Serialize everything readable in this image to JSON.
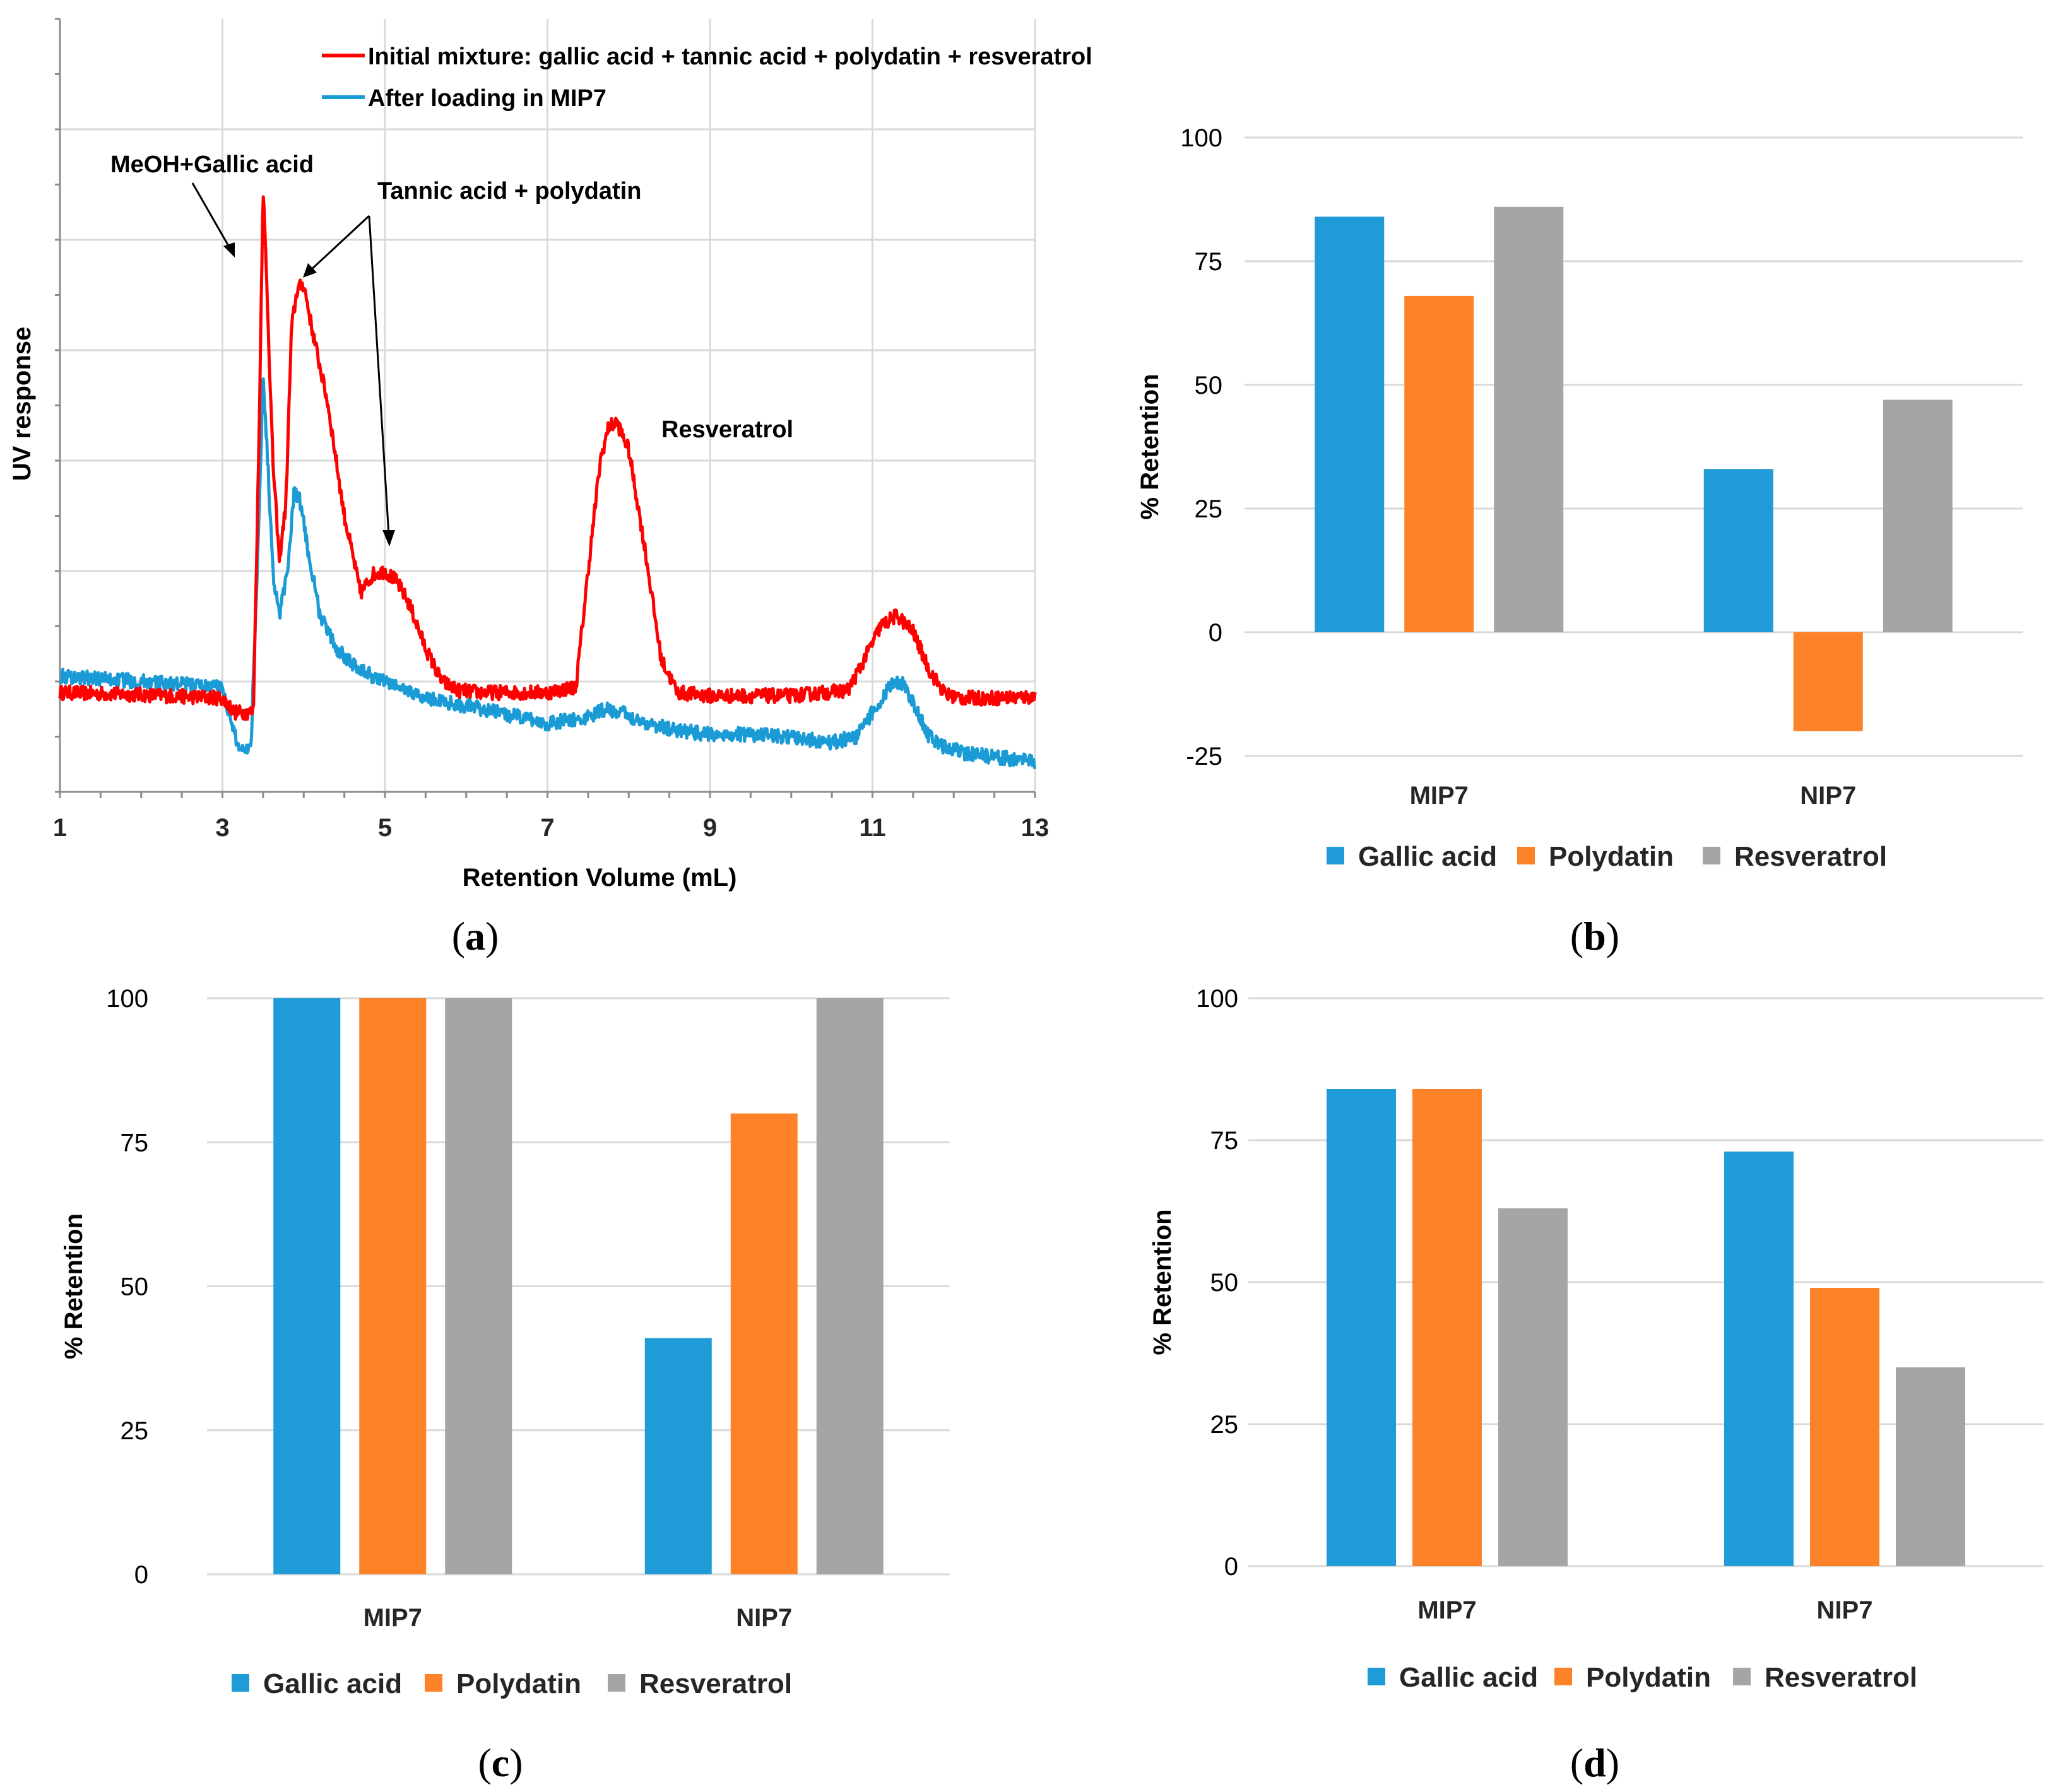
{
  "colors": {
    "gallic": "#1f9bd7",
    "polydatin": "#fd8228",
    "resveratrol": "#a5a5a5",
    "initial": "#ff0000",
    "after": "#1b9bd6"
  },
  "panel_a": {
    "caption": "a",
    "xlabel": "Retention Volume (mL)",
    "ylabel": "UV response",
    "legend": [
      "Initial mixture: gallic acid + tannic acid + polydatin + resveratrol",
      "After loading in MIP7"
    ],
    "annotations": {
      "meoh": "MeOH+Gallic acid",
      "tannic": "Tannic acid + polydatin",
      "resveratrol": "Resveratrol"
    }
  },
  "chart_data": [
    {
      "type": "line",
      "panel": "a",
      "title": "",
      "xlabel": "Retention Volume (mL)",
      "ylabel": "UV response",
      "xlim": [
        1,
        13
      ],
      "ylim": [
        0,
        7
      ],
      "x_ticks": [
        1,
        3,
        5,
        7,
        9,
        11,
        13
      ],
      "series": [
        {
          "name": "Initial mixture: gallic acid + tannic acid + polydatin + resveratrol",
          "x": [
            1,
            2,
            3,
            3.15,
            3.25,
            3.38,
            3.45,
            3.5,
            3.55,
            3.62,
            3.7,
            3.78,
            3.85,
            3.92,
            4.0,
            4.1,
            4.3,
            4.5,
            4.7,
            4.85,
            5.0,
            5.15,
            5.3,
            5.5,
            5.7,
            5.9,
            6.2,
            7.0,
            7.35,
            7.5,
            7.65,
            7.75,
            7.85,
            8.0,
            8.2,
            8.4,
            8.6,
            9.0,
            10.0,
            10.7,
            10.9,
            11.1,
            11.3,
            11.5,
            11.7,
            11.9,
            12.1,
            12.5,
            13.0
          ],
          "y": [
            0.9,
            0.88,
            0.85,
            0.72,
            0.72,
            0.72,
            3.2,
            5.5,
            4.5,
            3.0,
            2.1,
            2.6,
            4.2,
            4.55,
            4.6,
            4.2,
            3.5,
            2.5,
            1.8,
            1.97,
            2.0,
            1.9,
            1.7,
            1.3,
            1.0,
            0.92,
            0.9,
            0.9,
            0.95,
            2.0,
            3.0,
            3.3,
            3.35,
            3.1,
            2.2,
            1.2,
            0.9,
            0.87,
            0.87,
            0.92,
            1.2,
            1.5,
            1.6,
            1.45,
            1.1,
            0.88,
            0.85,
            0.85,
            0.86
          ]
        },
        {
          "name": "After loading in MIP7",
          "x": [
            1,
            2,
            3,
            3.1,
            3.2,
            3.35,
            3.45,
            3.5,
            3.55,
            3.62,
            3.7,
            3.8,
            3.88,
            3.95,
            4.05,
            4.2,
            4.4,
            4.7,
            5.0,
            5.5,
            6.0,
            6.5,
            7.0,
            7.5,
            7.7,
            7.9,
            8.2,
            8.5,
            9.0,
            9.5,
            10.0,
            10.5,
            10.8,
            11.0,
            11.2,
            11.35,
            11.5,
            11.7,
            11.9,
            12.2,
            12.6,
            13.0
          ],
          "y": [
            1.05,
            1.0,
            0.95,
            0.65,
            0.4,
            0.4,
            2.5,
            3.75,
            3.1,
            2.0,
            1.6,
            2.0,
            2.7,
            2.65,
            2.2,
            1.6,
            1.3,
            1.1,
            1.0,
            0.85,
            0.78,
            0.7,
            0.62,
            0.67,
            0.75,
            0.72,
            0.63,
            0.57,
            0.52,
            0.52,
            0.49,
            0.45,
            0.5,
            0.72,
            0.95,
            1.0,
            0.8,
            0.5,
            0.4,
            0.34,
            0.31,
            0.27
          ]
        }
      ]
    },
    {
      "type": "bar",
      "panel": "b",
      "categories": [
        "MIP7",
        "NIP7"
      ],
      "series": [
        {
          "name": "Gallic acid",
          "values": [
            84,
            33
          ]
        },
        {
          "name": "Polydatin",
          "values": [
            68,
            -20
          ]
        },
        {
          "name": "Resveratrol",
          "values": [
            86,
            47
          ]
        }
      ],
      "ylabel": "% Retention",
      "ylim": [
        -25,
        100
      ],
      "y_ticks": [
        -25,
        0,
        25,
        50,
        75,
        100
      ]
    },
    {
      "type": "bar",
      "panel": "c",
      "categories": [
        "MIP7",
        "NIP7"
      ],
      "series": [
        {
          "name": "Gallic acid",
          "values": [
            100,
            41
          ]
        },
        {
          "name": "Polydatin",
          "values": [
            100,
            80
          ]
        },
        {
          "name": "Resveratrol",
          "values": [
            100,
            100
          ]
        }
      ],
      "ylabel": "% Retention",
      "ylim": [
        0,
        100
      ],
      "y_ticks": [
        0,
        25,
        50,
        75,
        100
      ]
    },
    {
      "type": "bar",
      "panel": "d",
      "categories": [
        "MIP7",
        "NIP7"
      ],
      "series": [
        {
          "name": "Gallic acid",
          "values": [
            84,
            73
          ]
        },
        {
          "name": "Polydatin",
          "values": [
            84,
            49
          ]
        },
        {
          "name": "Resveratrol",
          "values": [
            63,
            35
          ]
        }
      ],
      "ylabel": "% Retention",
      "ylim": [
        0,
        100
      ],
      "y_ticks": [
        0,
        25,
        50,
        75,
        100
      ]
    }
  ],
  "captions": {
    "b": "b",
    "c": "c",
    "d": "d"
  }
}
